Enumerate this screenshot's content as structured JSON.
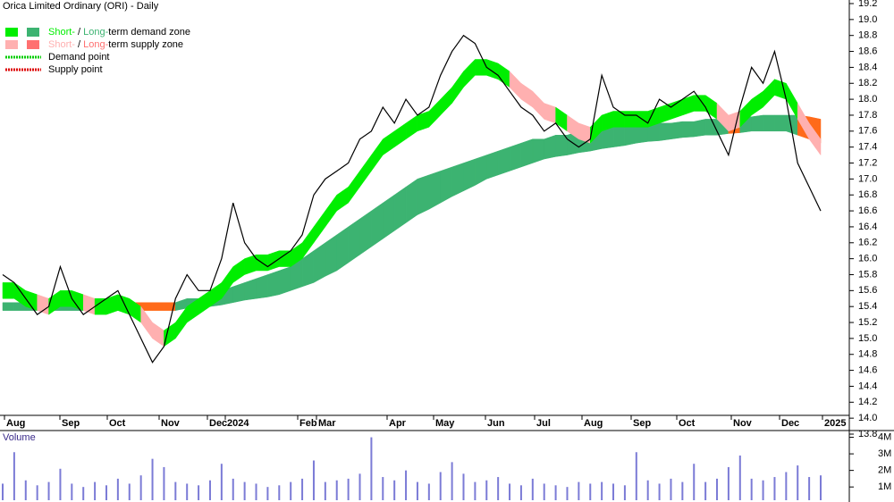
{
  "chart_data": {
    "type": "line",
    "title": "Orica Limited Ordinary (ORI) - Daily",
    "legend": [
      {
        "parts": [
          "Short-",
          " / ",
          "Long-",
          "term demand zone"
        ],
        "colors": [
          "#00ee00",
          "#3cb371"
        ]
      },
      {
        "parts": [
          "Short-",
          " / ",
          "Long-",
          "term supply zone"
        ],
        "colors": [
          "#ffb0b0",
          "#ff7070"
        ]
      },
      {
        "parts": [
          "Demand point"
        ],
        "colors": [
          "#00cc00"
        ]
      },
      {
        "parts": [
          "Supply point"
        ],
        "colors": [
          "#dd0000"
        ]
      }
    ],
    "xtick_labels": [
      "Aug",
      "Sep",
      "Oct",
      "Nov",
      "Dec",
      "2024",
      "Feb",
      "Mar",
      "Apr",
      "May",
      "Jun",
      "Jul",
      "Aug",
      "Sep",
      "Oct",
      "Nov",
      "Dec",
      "2025"
    ],
    "ylim": [
      13.8,
      19.2
    ],
    "yticks": [
      13.8,
      {
        "value": 14,
        "label": "14.0"
      },
      14.2,
      14.4,
      14.6,
      14.8,
      {
        "value": 15,
        "label": "15.0"
      },
      15.2,
      15.4,
      15.6,
      15.8,
      {
        "value": 16,
        "label": "16.0"
      },
      16.2,
      16.4,
      16.6,
      16.8,
      {
        "value": 17,
        "label": "17.0"
      },
      17.2,
      17.4,
      17.6,
      17.8,
      {
        "value": 18,
        "label": "18.0"
      },
      18.2,
      18.4,
      18.6,
      18.8,
      {
        "value": 19,
        "label": "19.0"
      },
      19.2
    ],
    "price": {
      "color": "#000000",
      "values": [
        15.8,
        15.7,
        15.5,
        15.3,
        15.4,
        15.9,
        15.5,
        15.3,
        15.4,
        15.5,
        15.6,
        15.3,
        15.0,
        14.7,
        14.9,
        15.5,
        15.8,
        15.6,
        15.6,
        16.0,
        16.7,
        16.2,
        16.0,
        15.9,
        16.0,
        16.1,
        16.3,
        16.8,
        17.0,
        17.1,
        17.2,
        17.5,
        17.6,
        17.9,
        17.7,
        18.0,
        17.8,
        17.9,
        18.3,
        18.6,
        18.8,
        18.7,
        18.4,
        18.3,
        18.1,
        17.9,
        17.8,
        17.6,
        17.7,
        17.5,
        17.4,
        17.5,
        18.3,
        17.9,
        17.8,
        17.8,
        17.7,
        18.0,
        17.9,
        18.0,
        18.1,
        17.9,
        17.6,
        17.3,
        17.9,
        18.4,
        18.2,
        18.6,
        18.0,
        17.2,
        16.9,
        16.6
      ]
    },
    "short_zone": {
      "demand_color": "#00ee00",
      "supply_color": "#ffb0b0",
      "upper": [
        15.7,
        15.7,
        15.6,
        15.55,
        15.5,
        15.6,
        15.6,
        15.55,
        15.5,
        15.5,
        15.55,
        15.5,
        15.4,
        15.2,
        15.1,
        15.2,
        15.4,
        15.5,
        15.6,
        15.7,
        15.9,
        16.0,
        16.05,
        16.05,
        16.1,
        16.1,
        16.2,
        16.4,
        16.6,
        16.8,
        16.9,
        17.1,
        17.3,
        17.5,
        17.6,
        17.7,
        17.8,
        17.85,
        18.0,
        18.15,
        18.35,
        18.5,
        18.5,
        18.45,
        18.35,
        18.2,
        18.1,
        17.95,
        17.9,
        17.8,
        17.7,
        17.65,
        17.8,
        17.85,
        17.85,
        17.85,
        17.85,
        17.9,
        17.95,
        18.0,
        18.05,
        18.05,
        17.95,
        17.8,
        17.85,
        18.0,
        18.1,
        18.25,
        18.2,
        17.95,
        17.7,
        17.5
      ],
      "lower": [
        15.5,
        15.5,
        15.4,
        15.35,
        15.3,
        15.4,
        15.4,
        15.35,
        15.3,
        15.3,
        15.35,
        15.3,
        15.2,
        15.0,
        14.9,
        15.0,
        15.2,
        15.3,
        15.4,
        15.5,
        15.7,
        15.8,
        15.85,
        15.85,
        15.9,
        15.9,
        16.0,
        16.2,
        16.4,
        16.6,
        16.7,
        16.9,
        17.1,
        17.3,
        17.4,
        17.5,
        17.6,
        17.65,
        17.8,
        17.95,
        18.15,
        18.3,
        18.3,
        18.25,
        18.15,
        18.0,
        17.9,
        17.75,
        17.7,
        17.6,
        17.5,
        17.45,
        17.6,
        17.65,
        17.65,
        17.65,
        17.65,
        17.7,
        17.75,
        17.8,
        17.85,
        17.85,
        17.75,
        17.6,
        17.65,
        17.8,
        17.9,
        18.05,
        18.0,
        17.75,
        17.5,
        17.3
      ]
    },
    "long_zone": {
      "demand_color": "#3cb371",
      "supply_color": "#ff6a1a",
      "upper": [
        15.45,
        15.45,
        15.45,
        15.45,
        15.45,
        15.45,
        15.45,
        15.45,
        15.45,
        15.45,
        15.45,
        15.45,
        15.45,
        15.45,
        15.45,
        15.45,
        15.5,
        15.5,
        15.55,
        15.6,
        15.65,
        15.7,
        15.75,
        15.8,
        15.85,
        15.9,
        16.0,
        16.1,
        16.2,
        16.3,
        16.4,
        16.5,
        16.6,
        16.7,
        16.8,
        16.9,
        17.0,
        17.05,
        17.1,
        17.15,
        17.2,
        17.25,
        17.3,
        17.35,
        17.4,
        17.45,
        17.5,
        17.5,
        17.55,
        17.55,
        17.6,
        17.6,
        17.6,
        17.65,
        17.65,
        17.65,
        17.7,
        17.7,
        17.7,
        17.72,
        17.72,
        17.75,
        17.75,
        17.75,
        17.78,
        17.78,
        17.8,
        17.8,
        17.8,
        17.8,
        17.78,
        17.75
      ],
      "lower": [
        15.35,
        15.35,
        15.35,
        15.35,
        15.35,
        15.35,
        15.35,
        15.35,
        15.35,
        15.35,
        15.35,
        15.35,
        15.35,
        15.35,
        15.35,
        15.35,
        15.38,
        15.38,
        15.4,
        15.42,
        15.45,
        15.48,
        15.5,
        15.52,
        15.55,
        15.6,
        15.65,
        15.7,
        15.78,
        15.85,
        15.95,
        16.05,
        16.15,
        16.25,
        16.35,
        16.45,
        16.55,
        16.62,
        16.7,
        16.78,
        16.85,
        16.92,
        17.0,
        17.05,
        17.1,
        17.15,
        17.2,
        17.25,
        17.28,
        17.3,
        17.33,
        17.35,
        17.38,
        17.4,
        17.42,
        17.45,
        17.47,
        17.48,
        17.5,
        17.52,
        17.53,
        17.55,
        17.55,
        17.57,
        17.58,
        17.6,
        17.6,
        17.6,
        17.6,
        17.55,
        17.5,
        17.45
      ]
    },
    "volume": {
      "label": "Volume",
      "color": "#7b7bd6",
      "ylim": [
        200000,
        4300000
      ],
      "yticks": [
        {
          "value": 4000000,
          "label": "4M"
        },
        {
          "value": 3000000,
          "label": "3M"
        },
        {
          "value": 2000000,
          "label": "2M"
        },
        {
          "value": 1000000,
          "label": "1M"
        }
      ],
      "values": [
        1200000,
        3100000,
        1400000,
        1100000,
        1300000,
        2100000,
        1200000,
        1000000,
        1300000,
        1100000,
        1500000,
        1200000,
        1700000,
        2700000,
        2200000,
        1300000,
        1200000,
        1100000,
        1400000,
        2400000,
        1500000,
        1300000,
        1200000,
        1000000,
        1100000,
        1300000,
        1500000,
        2600000,
        1300000,
        1400000,
        1500000,
        1800000,
        4000000,
        1600000,
        1400000,
        2000000,
        1300000,
        1200000,
        1900000,
        2500000,
        1800000,
        1300000,
        1400000,
        1600000,
        1200000,
        1100000,
        1500000,
        1200000,
        1100000,
        1000000,
        1300000,
        1200000,
        1300000,
        1200000,
        1100000,
        3100000,
        1400000,
        1200000,
        1500000,
        1300000,
        2400000,
        1300000,
        1500000,
        2200000,
        2900000,
        1500000,
        1400000,
        1600000,
        1900000,
        2300000,
        1600000,
        1700000
      ]
    }
  }
}
